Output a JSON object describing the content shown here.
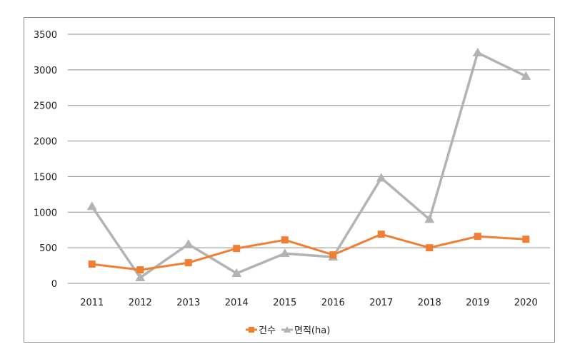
{
  "chart_data": {
    "type": "line",
    "title": "",
    "xlabel": "",
    "ylabel": "",
    "categories": [
      "2011",
      "2012",
      "2013",
      "2014",
      "2015",
      "2016",
      "2017",
      "2018",
      "2019",
      "2020"
    ],
    "ylim": [
      0,
      3500
    ],
    "yticks": [
      0,
      500,
      1000,
      1500,
      2000,
      2500,
      3000,
      3500
    ],
    "grid": true,
    "legend_position": "bottom",
    "series": [
      {
        "name": "건수",
        "color": "#f07f33",
        "marker": "square",
        "values": [
          270,
          190,
          290,
          490,
          610,
          400,
          690,
          500,
          660,
          620
        ]
      },
      {
        "name": "면적(ha)",
        "color": "#b3b3b3",
        "marker": "triangle",
        "values": [
          1080,
          80,
          550,
          140,
          420,
          370,
          1480,
          900,
          3240,
          2910
        ]
      }
    ]
  }
}
